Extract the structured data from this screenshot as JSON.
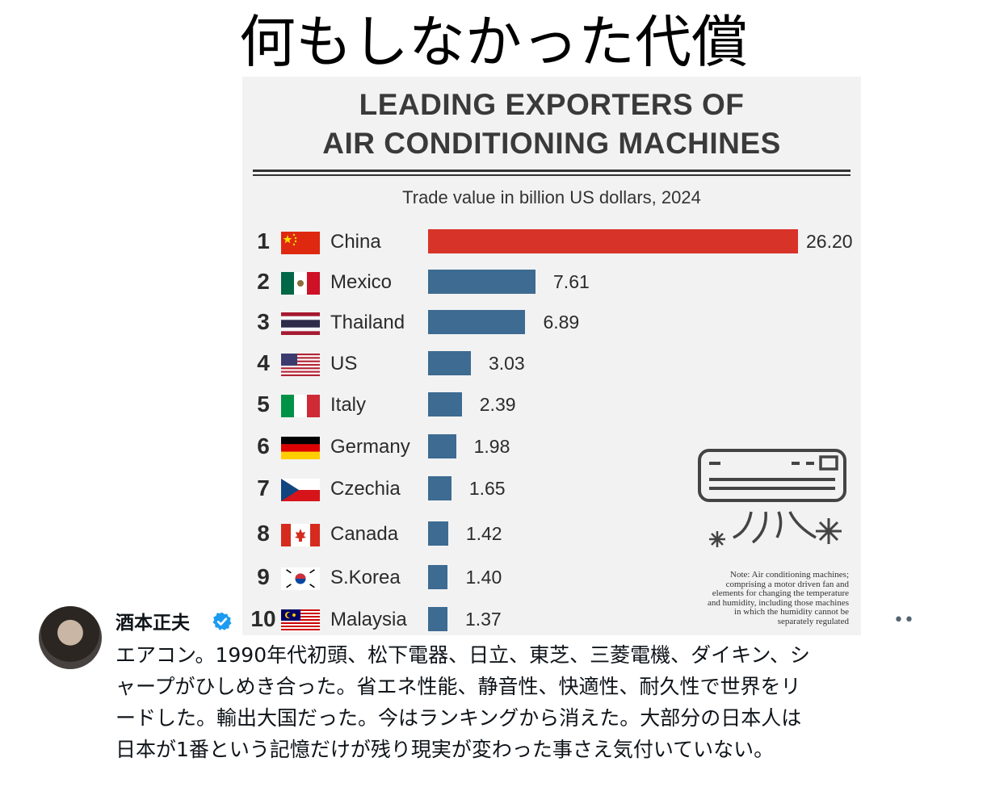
{
  "headline": "何もしなかった代償",
  "infographic": {
    "title_line1": "LEADING EXPORTERS OF",
    "title_line2": "AIR CONDITIONING MACHINES",
    "subtitle": "Trade value in billion US dollars, 2024",
    "note_lines": [
      "Note: Air conditioning machines;",
      "comprising a motor driven fan and",
      "elements for changing the temperature",
      "and humidity, including those machines",
      "in which the humidity cannot be",
      "separately regulated"
    ],
    "colors": {
      "top_bar": "#d83328",
      "bar": "#3d6b92"
    },
    "icon": "air-conditioner-icon"
  },
  "chart_data": {
    "type": "bar",
    "orientation": "horizontal",
    "title": "LEADING EXPORTERS OF AIR CONDITIONING MACHINES",
    "subtitle": "Trade value in billion US dollars, 2024",
    "ranks": [
      "1",
      "2",
      "3",
      "4",
      "5",
      "6",
      "7",
      "8",
      "9",
      "10"
    ],
    "categories": [
      "China",
      "Mexico",
      "Thailand",
      "US",
      "Italy",
      "Germany",
      "Czechia",
      "Canada",
      "S.Korea",
      "Malaysia"
    ],
    "values": [
      26.2,
      7.61,
      6.89,
      3.03,
      2.39,
      1.98,
      1.65,
      1.42,
      1.4,
      1.37
    ],
    "value_labels": [
      "26.20",
      "7.61",
      "6.89",
      "3.03",
      "2.39",
      "1.98",
      "1.65",
      "1.42",
      "1.40",
      "1.37"
    ],
    "xlim": [
      0,
      26.2
    ],
    "grid": false,
    "legend": "none"
  },
  "post": {
    "author": "酒本正夫",
    "verified_icon": "verified-badge-icon",
    "more_icon": "more-options-icon",
    "more_label": "••",
    "lines": [
      "エアコン。1990年代初頭、松下電器、日立、東芝、三菱電機、ダイキン、シ",
      "ャープがひしめき合った。省エネ性能、静音性、快適性、耐久性で世界をリ",
      "ードした。輸出大国だった。今はランキングから消えた。大部分の日本人は",
      "日本が1番という記憶だけが残り現実が変わった事さえ気付いていない。"
    ]
  }
}
